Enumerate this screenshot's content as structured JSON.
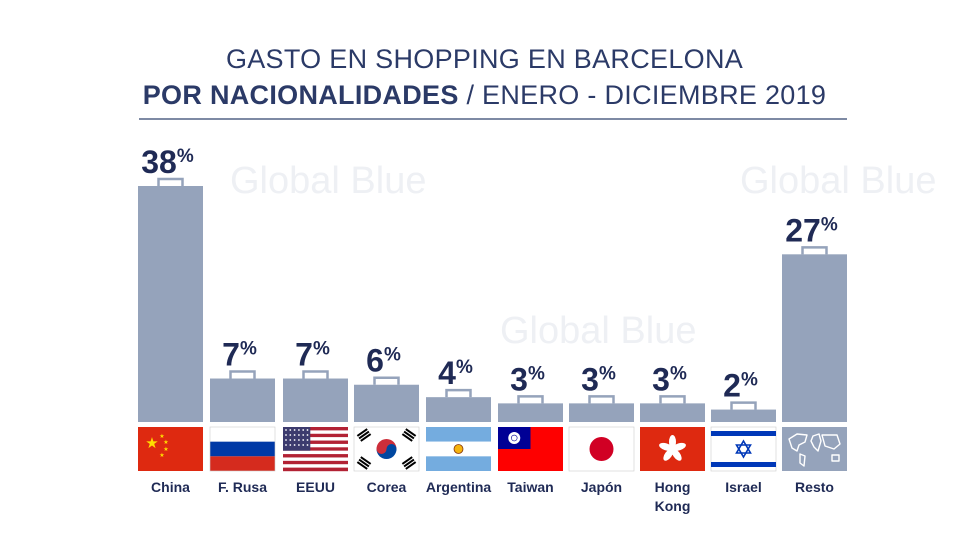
{
  "title_line1": "GASTO EN SHOPPING EN BARCELONA",
  "title_line2_bold": "POR NACIONALIDADES",
  "title_line2_rest": " / ENERO - DICIEMBRE 2019",
  "watermark": "Global Blue",
  "colors": {
    "bar": "#95a3bb",
    "text": "#1f2a55",
    "rule": "#7e8aa4"
  },
  "chart_data": {
    "type": "bar",
    "title": "GASTO EN SHOPPING EN BARCELONA / POR NACIONALIDADES / ENERO - DICIEMBRE 2019",
    "categories": [
      "China",
      "F. Rusa",
      "EEUU",
      "Corea",
      "Argentina",
      "Taiwan",
      "Japón",
      "Hong Kong",
      "Israel",
      "Resto"
    ],
    "values": [
      38,
      7,
      7,
      6,
      4,
      3,
      3,
      3,
      2,
      27
    ],
    "value_labels": [
      "38%",
      "7%",
      "7%",
      "6%",
      "4%",
      "3%",
      "3%",
      "3%",
      "2%",
      "27%"
    ],
    "label_lines": [
      [
        "China"
      ],
      [
        "F. Rusa"
      ],
      [
        "EEUU"
      ],
      [
        "Corea"
      ],
      [
        "Argentina"
      ],
      [
        "Taiwan"
      ],
      [
        "Japón"
      ],
      [
        "Hong",
        "Kong"
      ],
      [
        "Israel"
      ],
      [
        "Resto"
      ]
    ],
    "flags": [
      "china-flag",
      "russia-flag",
      "usa-flag",
      "korea-flag",
      "argentina-flag",
      "taiwan-flag",
      "japan-flag",
      "hong-kong-flag",
      "israel-flag",
      "world-map-icon"
    ],
    "unit": "%",
    "ylim": [
      0,
      38
    ]
  }
}
